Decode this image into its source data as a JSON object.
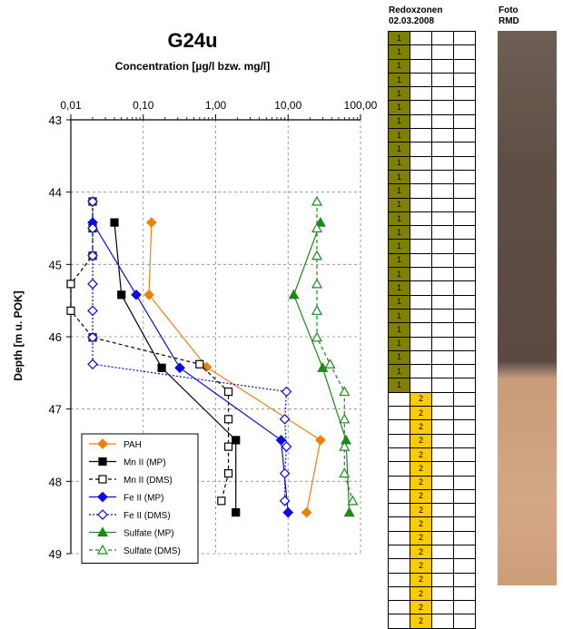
{
  "chart_data": {
    "type": "scatter",
    "title": "G24u",
    "subtitle": "Concentration [µg/l bzw. mg/l]",
    "ylabel": "Depth [m u. POK]",
    "xscale": "log",
    "xlim": [
      0.01,
      100
    ],
    "ylim": [
      43,
      49
    ],
    "y_inverted": true,
    "xticks": [
      "0,01",
      "0,10",
      "1,00",
      "10,00",
      "100,00"
    ],
    "yticks": [
      "43",
      "44",
      "45",
      "46",
      "47",
      "48",
      "49"
    ],
    "grid": true,
    "legend_position": "bottom-left",
    "series": [
      {
        "name": "PAH",
        "color": "#f07f0a",
        "marker": "diamond",
        "line": "solid",
        "points": [
          [
            0.13,
            44.42
          ],
          [
            0.12,
            45.42
          ],
          [
            0.75,
            46.42
          ],
          [
            28,
            47.43
          ],
          [
            18,
            48.43
          ]
        ]
      },
      {
        "name": "Mn II (MP)",
        "color": "#000000",
        "marker": "square",
        "line": "solid",
        "points": [
          [
            0.04,
            44.42
          ],
          [
            0.05,
            45.42
          ],
          [
            0.18,
            46.43
          ],
          [
            1.9,
            47.43
          ],
          [
            1.9,
            48.43
          ]
        ]
      },
      {
        "name": "Mn II (DMS)",
        "color": "#000000",
        "marker": "square-open",
        "line": "dashed",
        "points": [
          [
            0.02,
            44.13
          ],
          [
            0.02,
            44.5
          ],
          [
            0.02,
            44.88
          ],
          [
            0.01,
            45.27
          ],
          [
            0.01,
            45.64
          ],
          [
            0.02,
            46.01
          ],
          [
            0.6,
            46.38
          ],
          [
            1.5,
            46.76
          ],
          [
            1.5,
            47.14
          ],
          [
            1.5,
            47.52
          ],
          [
            1.5,
            47.89
          ],
          [
            1.2,
            48.27
          ]
        ]
      },
      {
        "name": "Fe II (MP)",
        "color": "#0a0ae6",
        "marker": "diamond",
        "line": "solid",
        "points": [
          [
            0.02,
            44.42
          ],
          [
            0.08,
            45.42
          ],
          [
            0.32,
            46.43
          ],
          [
            8,
            47.43
          ],
          [
            10,
            48.43
          ]
        ]
      },
      {
        "name": "Fe II (DMS)",
        "color": "#0a0ae6",
        "marker": "diamond-open",
        "line": "dotted",
        "points": [
          [
            0.02,
            44.13
          ],
          [
            0.02,
            44.5
          ],
          [
            0.02,
            44.88
          ],
          [
            0.02,
            45.27
          ],
          [
            0.02,
            45.64
          ],
          [
            0.02,
            46.01
          ],
          [
            0.02,
            46.38
          ],
          [
            9.5,
            46.76
          ],
          [
            9,
            47.14
          ],
          [
            9.5,
            47.52
          ],
          [
            9,
            47.89
          ],
          [
            9,
            48.27
          ]
        ]
      },
      {
        "name": "Sulfate (MP)",
        "color": "#1a8a1a",
        "marker": "triangle",
        "line": "solid",
        "points": [
          [
            28,
            44.42
          ],
          [
            12,
            45.42
          ],
          [
            30,
            46.43
          ],
          [
            63,
            47.43
          ],
          [
            70,
            48.43
          ]
        ]
      },
      {
        "name": "Sulfate (DMS)",
        "color": "#1a8a1a",
        "marker": "triangle-open",
        "line": "dashed",
        "points": [
          [
            25,
            44.13
          ],
          [
            25,
            44.5
          ],
          [
            25,
            44.88
          ],
          [
            25,
            45.27
          ],
          [
            25,
            45.64
          ],
          [
            25,
            46.01
          ],
          [
            38,
            46.38
          ],
          [
            60,
            46.76
          ],
          [
            60,
            47.14
          ],
          [
            60,
            47.52
          ],
          [
            60,
            47.89
          ],
          [
            78,
            48.27
          ]
        ]
      }
    ]
  },
  "redox": {
    "header": [
      "Redoxzonen",
      "02.03.2008"
    ],
    "zone1_label": "1",
    "zone2_label": "2",
    "zone1_color": "#808000",
    "zone2_color": "#ffcc00",
    "zone1_rows": 26,
    "zone2_rows": 17
  },
  "photo": {
    "header": [
      "Foto",
      "RMD"
    ]
  }
}
